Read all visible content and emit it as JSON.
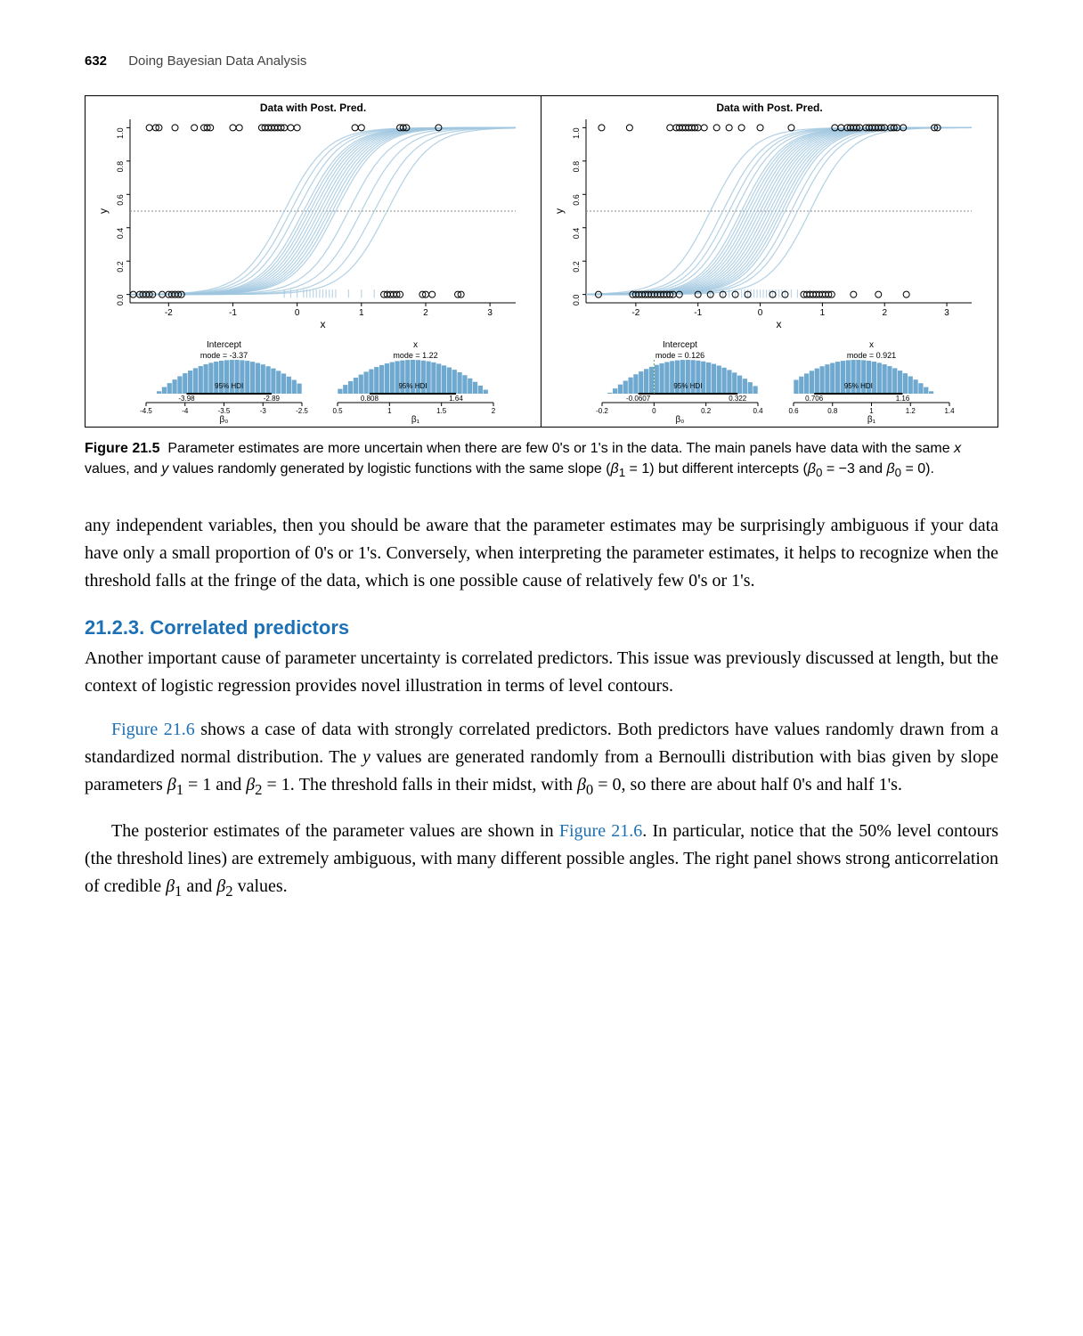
{
  "header": {
    "pagenum": "632",
    "book_title": "Doing Bayesian Data Analysis"
  },
  "figure": {
    "left": {
      "title": "Data with Post. Pred.",
      "xlabel": "x",
      "ylabel": "y",
      "xlim": [
        -2.6,
        3.4
      ],
      "ylim": [
        -0.05,
        1.05
      ],
      "xticks": [
        -2,
        -1,
        0,
        1,
        2,
        3
      ],
      "yticks": [
        0.0,
        0.2,
        0.4,
        0.6,
        0.8,
        1.0
      ],
      "curve_color": "#9fc5de",
      "point_stroke": "#000000",
      "bg": "#ffffff",
      "ref_line_y": 0.5,
      "top_points_x": [
        -2.3,
        -2.2,
        -2.15,
        -1.9,
        -1.6,
        -1.45,
        -1.4,
        -1.35,
        -1.0,
        -0.9,
        -0.55,
        -0.5,
        -0.45,
        -0.4,
        -0.35,
        -0.3,
        -0.25,
        -0.2,
        -0.1,
        0.0,
        0.9,
        1.0,
        1.6,
        1.65,
        1.7,
        2.2
      ],
      "bot_points_x": [
        -2.55,
        -2.45,
        -2.4,
        -2.35,
        -2.3,
        -2.25,
        -2.1,
        -2.0,
        -1.95,
        -1.9,
        -1.85,
        -1.8,
        1.35,
        1.4,
        1.45,
        1.5,
        1.55,
        1.6,
        1.95,
        2.0,
        2.1,
        2.5,
        2.55
      ],
      "curve_centers": [
        -0.2,
        -0.1,
        0.0,
        0.1,
        0.15,
        0.2,
        0.25,
        0.3,
        0.35,
        0.4,
        0.45,
        0.5,
        0.55,
        0.6,
        0.8,
        1.0,
        1.2,
        1.4
      ],
      "intercept_hist": {
        "title": "Intercept",
        "mode": "mode = -3.37",
        "hdi_lo": "-3.98",
        "hdi_hi": "-2.89",
        "hdi_label": "95% HDI",
        "ticks": [
          -4.5,
          -4.0,
          -3.5,
          -3.0,
          -2.5
        ],
        "xlabel": "β₀",
        "bar_color": "#6fa9d0",
        "zero_line": "#5aa65a"
      },
      "x_hist": {
        "title": "x",
        "mode": "mode = 1.22",
        "hdi_lo": "0.808",
        "hdi_hi": "1.64",
        "hdi_label": "95% HDI",
        "ticks": [
          0.5,
          1.0,
          1.5,
          2.0
        ],
        "xlabel": "β₁",
        "bar_color": "#6fa9d0",
        "zero_line": "#5aa65a"
      }
    },
    "right": {
      "title": "Data with Post. Pred.",
      "xlabel": "x",
      "ylabel": "y",
      "xlim": [
        -2.8,
        3.4
      ],
      "ylim": [
        -0.05,
        1.05
      ],
      "xticks": [
        -2,
        -1,
        0,
        1,
        2,
        3
      ],
      "yticks": [
        0.0,
        0.2,
        0.4,
        0.6,
        0.8,
        1.0
      ],
      "curve_color": "#9fc5de",
      "point_stroke": "#000000",
      "bg": "#ffffff",
      "ref_line_y": 0.5,
      "top_points_x": [
        -2.55,
        -2.1,
        -1.45,
        -1.35,
        -1.3,
        -1.25,
        -1.2,
        -1.15,
        -1.1,
        -1.05,
        -1.0,
        -0.9,
        -0.7,
        -0.5,
        -0.3,
        0.0,
        0.5,
        1.2,
        1.3,
        1.4,
        1.45,
        1.5,
        1.55,
        1.6,
        1.7,
        1.75,
        1.8,
        1.85,
        1.9,
        1.95,
        2.0,
        2.1,
        2.15,
        2.2,
        2.3,
        2.8,
        2.85
      ],
      "bot_points_x": [
        -2.6,
        -2.05,
        -2.0,
        -1.95,
        -1.9,
        -1.85,
        -1.8,
        -1.75,
        -1.7,
        -1.65,
        -1.6,
        -1.55,
        -1.5,
        -1.45,
        -1.4,
        -1.3,
        -1.0,
        -0.8,
        -0.6,
        -0.4,
        -0.2,
        0.2,
        0.4,
        0.7,
        0.75,
        0.8,
        0.85,
        0.9,
        0.95,
        1.0,
        1.05,
        1.1,
        1.15,
        1.5,
        1.9,
        2.35
      ],
      "curve_centers": [
        -0.8,
        -0.6,
        -0.5,
        -0.4,
        -0.3,
        -0.25,
        -0.2,
        -0.15,
        -0.1,
        -0.05,
        0.0,
        0.05,
        0.1,
        0.15,
        0.2,
        0.25,
        0.3,
        0.35,
        0.4,
        0.5,
        0.6,
        0.8
      ],
      "intercept_hist": {
        "title": "Intercept",
        "mode": "mode = 0.126",
        "hdi_lo": "-0.0607",
        "hdi_hi": "0.322",
        "hdi_label": "95% HDI",
        "ticks": [
          -0.2,
          0.0,
          0.2,
          0.4
        ],
        "xlabel": "β₀",
        "bar_color": "#6fa9d0",
        "zero_line": "#5aa65a"
      },
      "x_hist": {
        "title": "x",
        "mode": "mode = 0.921",
        "hdi_lo": "0.706",
        "hdi_hi": "1.16",
        "hdi_label": "95% HDI",
        "ticks": [
          0.6,
          0.8,
          1.0,
          1.2,
          1.4
        ],
        "xlabel": "β₁",
        "bar_color": "#6fa9d0",
        "zero_line": "#5aa65a"
      }
    }
  },
  "caption": {
    "label": "Figure 21.5",
    "text1": "Parameter estimates are more uncertain when there are few 0's or 1's in the data. The main panels have data with the same ",
    "text2": " values, and ",
    "text3": " values randomly generated by logistic functions with the same slope (",
    "text4": " = 1) but different intercepts (",
    "text5": " = −3 and ",
    "text6": " = 0)."
  },
  "para1": "any independent variables, then you should be aware that the parameter estimates may be surprisingly ambiguous if your data have only a small proportion of 0's or 1's. Conversely, when interpreting the parameter estimates, it helps to recognize when the threshold falls at the fringe of the data, which is one possible cause of relatively few 0's or 1's.",
  "section": "21.2.3. Correlated predictors",
  "para2": "Another important cause of parameter uncertainty is correlated predictors. This issue was previously discussed at length, but the context of logistic regression provides novel illustration in terms of level contours.",
  "para3a": "Figure 21.6",
  "para3b": " shows a case of data with strongly correlated predictors. Both predictors have values randomly drawn from a standardized normal distribution. The ",
  "para3c": " values are generated randomly from a Bernoulli distribution with bias given by slope parameters ",
  "para3d": " = 1 and ",
  "para3e": " = 1. The threshold falls in their midst, with ",
  "para3f": " = 0, so there are about half 0's and half 1's.",
  "para4a": "The posterior estimates of the parameter values are shown in ",
  "para4b": "Figure 21.6",
  "para4c": ". In particular, notice that the 50% level contours (the threshold lines) are extremely ambiguous, with many different possible angles. The right panel shows strong anticorrelation of credible ",
  "para4d": " and ",
  "para4e": " values."
}
